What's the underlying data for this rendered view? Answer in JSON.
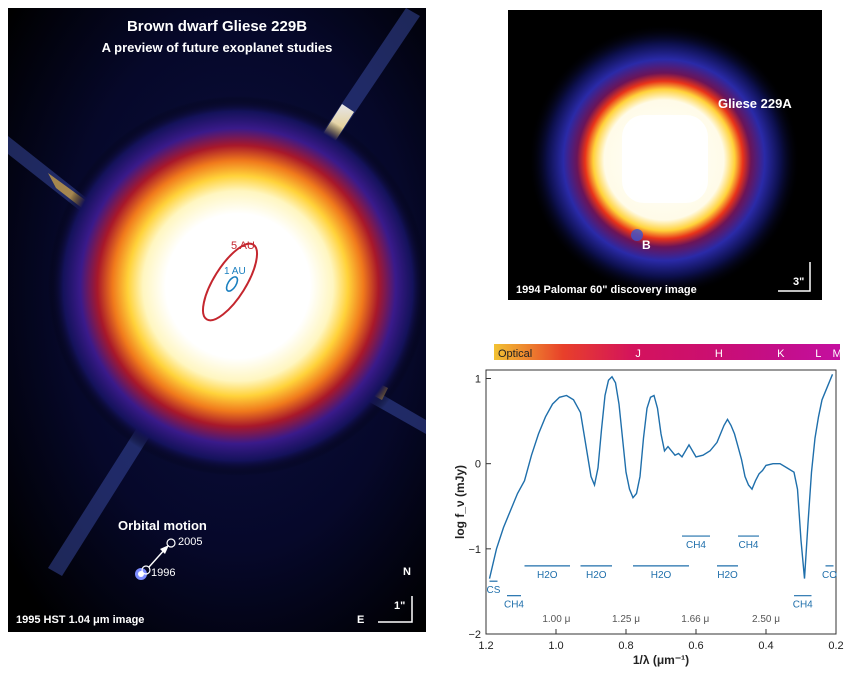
{
  "hst_panel": {
    "title": "Brown dwarf Gliese 229B",
    "subtitle": "A preview of  future exoplanet studies",
    "ring_5au": "5 AU",
    "ring_1au": "1 AU",
    "orbital_motion_label": "Orbital motion",
    "epoch_2005": "2005",
    "epoch_1996": "1996",
    "caption": "1995 HST 1.04 μm image",
    "compass_north": "N",
    "compass_east": "E",
    "scale_bar": "1\""
  },
  "palomar_panel": {
    "star_label": "Gliese 229A",
    "companion_label": "B",
    "caption": "1994  Palomar 60\" discovery image",
    "scale_bar": "3\""
  },
  "band_bar": {
    "labels": [
      "Optical",
      "J",
      "H",
      "K",
      "L",
      "M"
    ],
    "colors": [
      "#f2c233",
      "#e8402a",
      "#d4135c",
      "#cc0f6e",
      "#c40e86",
      "#c40fa0"
    ]
  },
  "chart_data": {
    "type": "line",
    "xlabel": "1/λ (μm⁻¹)",
    "ylabel": "log f_ν (mJy)",
    "xlim": [
      1.2,
      0.2
    ],
    "ylim": [
      -2,
      1.1
    ],
    "xticks": [
      "1.2",
      "1.0",
      "0.8",
      "0.6",
      "0.4",
      "0.2"
    ],
    "yticks": [
      "1",
      "0",
      "−1",
      "−2"
    ],
    "wavelength_marks": [
      {
        "x": 0.999,
        "label": "1.00 μ"
      },
      {
        "x": 0.8,
        "label": "1.25 μ"
      },
      {
        "x": 0.602,
        "label": "1.66 μ"
      },
      {
        "x": 0.4,
        "label": "2.50 μ"
      }
    ],
    "absorption_features": [
      {
        "label": "CS",
        "x": [
          1.19,
          1.19
        ],
        "y": -1.38
      },
      {
        "label": "CH4",
        "x": [
          1.14,
          1.1
        ],
        "y": -1.55
      },
      {
        "label": "H2O",
        "x": [
          1.09,
          0.96
        ],
        "y": -1.2
      },
      {
        "label": "H2O",
        "x": [
          0.93,
          0.84
        ],
        "y": -1.2
      },
      {
        "label": "H2O",
        "x": [
          0.78,
          0.62
        ],
        "y": -1.2
      },
      {
        "label": "CH4",
        "x": [
          0.64,
          0.56
        ],
        "y": -0.85
      },
      {
        "label": "H2O",
        "x": [
          0.54,
          0.48
        ],
        "y": -1.2
      },
      {
        "label": "CH4",
        "x": [
          0.48,
          0.42
        ],
        "y": -0.85
      },
      {
        "label": "CH4",
        "x": [
          0.32,
          0.27
        ],
        "y": -1.55
      },
      {
        "label": "CO",
        "x": [
          0.23,
          0.21
        ],
        "y": -1.2
      }
    ],
    "series": [
      {
        "x": [
          1.19,
          1.17,
          1.15,
          1.13,
          1.11,
          1.09,
          1.07,
          1.05,
          1.03,
          1.01,
          0.99,
          0.97,
          0.95,
          0.93,
          0.92,
          0.91,
          0.9,
          0.89,
          0.88,
          0.87,
          0.86,
          0.85,
          0.84,
          0.83,
          0.82,
          0.81,
          0.8,
          0.79,
          0.78,
          0.77,
          0.76,
          0.75,
          0.74,
          0.73,
          0.72,
          0.71,
          0.7,
          0.69,
          0.68,
          0.67,
          0.66,
          0.65,
          0.64,
          0.62,
          0.6,
          0.58,
          0.56,
          0.54,
          0.52,
          0.51,
          0.5,
          0.49,
          0.48,
          0.47,
          0.46,
          0.45,
          0.44,
          0.43,
          0.42,
          0.41,
          0.4,
          0.38,
          0.36,
          0.34,
          0.32,
          0.31,
          0.3,
          0.29,
          0.28,
          0.27,
          0.26,
          0.25,
          0.24,
          0.23,
          0.22,
          0.21
        ],
        "y": [
          -1.35,
          -1.0,
          -0.75,
          -0.55,
          -0.35,
          -0.2,
          0.1,
          0.35,
          0.55,
          0.7,
          0.78,
          0.8,
          0.75,
          0.6,
          0.35,
          0.1,
          -0.15,
          -0.25,
          -0.05,
          0.4,
          0.8,
          0.98,
          1.02,
          0.95,
          0.7,
          0.3,
          -0.1,
          -0.3,
          -0.4,
          -0.35,
          -0.15,
          0.3,
          0.65,
          0.78,
          0.8,
          0.65,
          0.35,
          0.15,
          0.2,
          0.15,
          0.1,
          0.12,
          0.08,
          0.22,
          0.08,
          0.1,
          0.15,
          0.25,
          0.45,
          0.52,
          0.45,
          0.35,
          0.2,
          0.05,
          -0.15,
          -0.25,
          -0.3,
          -0.2,
          -0.12,
          -0.08,
          -0.02,
          0.0,
          0.0,
          -0.05,
          -0.1,
          -0.3,
          -0.9,
          -1.35,
          -0.7,
          -0.1,
          0.3,
          0.55,
          0.75,
          0.85,
          0.95,
          1.05
        ]
      }
    ]
  }
}
